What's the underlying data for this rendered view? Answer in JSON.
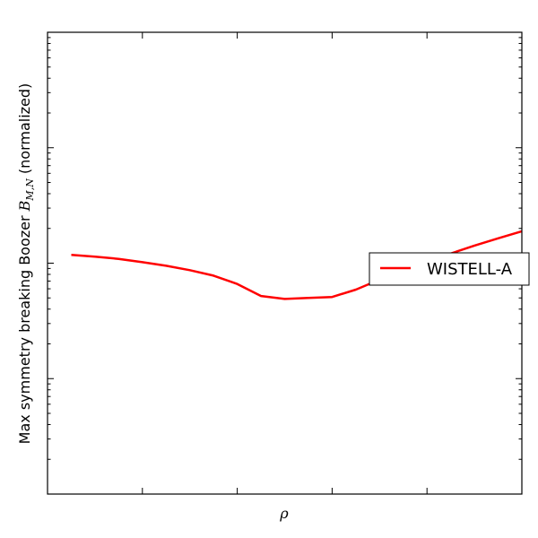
{
  "chart_data": {
    "type": "line",
    "title": "",
    "xlabel": "ρ",
    "ylabel_prefix": "Max symmetry breaking Boozer ",
    "ylabel_symbol": "B",
    "ylabel_subscript": "M,N",
    "ylabel_suffix": " (normalized)",
    "log_y": true,
    "xlim": [
      0.0,
      1.0
    ],
    "ylim": [
      0.0001,
      1.0
    ],
    "grid": false,
    "legend_position": "right",
    "series": [
      {
        "name": "WISTELL-A",
        "color": "#ff0000",
        "x": [
          0.05,
          0.1,
          0.15,
          0.2,
          0.25,
          0.3,
          0.35,
          0.4,
          0.45,
          0.5,
          0.55,
          0.6,
          0.65,
          0.7,
          0.75,
          0.8,
          0.85,
          0.9,
          0.95,
          1.0
        ],
        "y": [
          0.0118,
          0.0114,
          0.0109,
          0.0102,
          0.0095,
          0.0087,
          0.0078,
          0.0066,
          0.0052,
          0.0049,
          0.005,
          0.0051,
          0.0059,
          0.0072,
          0.0087,
          0.0103,
          0.0121,
          0.0142,
          0.0164,
          0.0189
        ]
      }
    ]
  }
}
